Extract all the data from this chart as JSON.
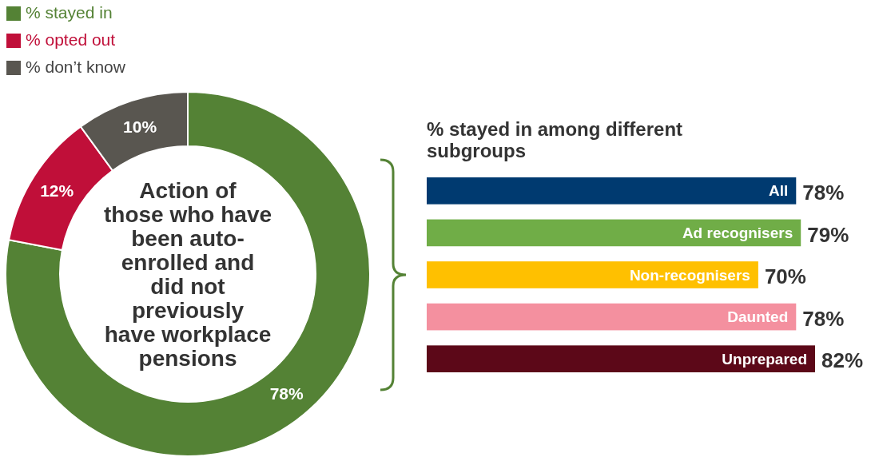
{
  "chart_data": [
    {
      "type": "donut",
      "title": "Action of those who have been auto-enrolled and did not previously have workplace pensions",
      "categories": [
        "% stayed in",
        "% opted out",
        "% don’t know"
      ],
      "values": [
        78,
        12,
        10
      ],
      "colors": [
        "#548235",
        "#c00f39",
        "#595650"
      ],
      "value_labels": [
        "78%",
        "12%",
        "10%"
      ],
      "legend": "top left"
    },
    {
      "type": "bar",
      "orientation": "horizontal",
      "title": "% stayed in among different subgroups",
      "categories": [
        "All",
        "Ad recognisers",
        "Non-recognisers",
        "Daunted",
        "Unprepared"
      ],
      "values": [
        78,
        79,
        70,
        78,
        82
      ],
      "colors": [
        "#003a70",
        "#70ad47",
        "#ffc000",
        "#f4909f",
        "#5c0818"
      ],
      "value_labels": [
        "78%",
        "79%",
        "70%",
        "78%",
        "82%"
      ]
    }
  ]
}
